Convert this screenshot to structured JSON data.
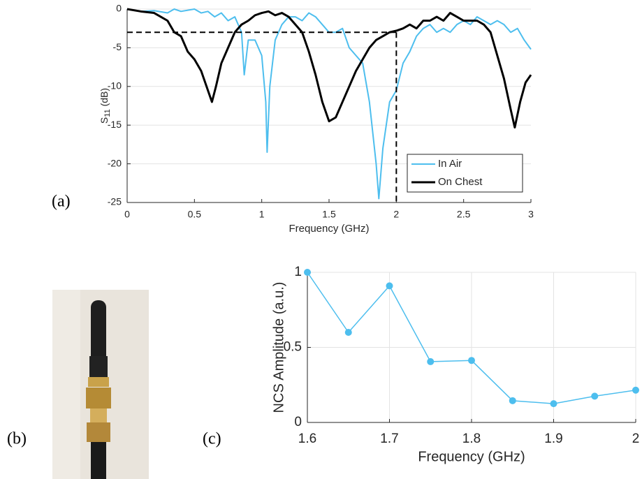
{
  "chart_data": [
    {
      "type": "line",
      "xlabel": "Frequency (GHz)",
      "ylabel": {
        "base": "S",
        "subscript": "11",
        "unit": " (dB)"
      },
      "panel": "(a)",
      "xlim": [
        0,
        3
      ],
      "xticks": [
        0,
        0.5,
        1,
        1.5,
        2,
        2.5,
        3
      ],
      "ylim": [
        -25,
        0
      ],
      "yticks": [
        -25,
        -20,
        -15,
        -10,
        -5,
        0
      ],
      "grid": "y",
      "legend": "lower-right",
      "reference_lines": {
        "y": -3,
        "x": 2,
        "color": "#000000"
      },
      "series": [
        {
          "name": "In Air",
          "color": "#4dbeee",
          "x": [
            0,
            0.1,
            0.2,
            0.3,
            0.35,
            0.4,
            0.5,
            0.55,
            0.6,
            0.65,
            0.7,
            0.75,
            0.8,
            0.85,
            0.87,
            0.9,
            0.95,
            1.0,
            1.03,
            1.04,
            1.06,
            1.1,
            1.15,
            1.2,
            1.25,
            1.3,
            1.35,
            1.4,
            1.45,
            1.5,
            1.55,
            1.6,
            1.65,
            1.7,
            1.75,
            1.8,
            1.85,
            1.87,
            1.9,
            1.95,
            2.0,
            2.05,
            2.1,
            2.15,
            2.2,
            2.25,
            2.3,
            2.35,
            2.4,
            2.45,
            2.5,
            2.55,
            2.6,
            2.65,
            2.7,
            2.75,
            2.8,
            2.85,
            2.9,
            2.95,
            3.0
          ],
          "values": [
            0,
            -0.3,
            -0.2,
            -0.5,
            0,
            -0.3,
            0,
            -0.5,
            -0.3,
            -1,
            -0.5,
            -1.5,
            -1,
            -3,
            -8.5,
            -4,
            -4,
            -6,
            -12,
            -18.5,
            -10,
            -4,
            -2,
            -1,
            -1,
            -1.5,
            -0.5,
            -1,
            -2,
            -3,
            -3,
            -2.5,
            -5,
            -6,
            -7,
            -12,
            -20,
            -24.5,
            -18,
            -12,
            -10.5,
            -7,
            -5.5,
            -3.5,
            -2.5,
            -2,
            -3,
            -2.5,
            -3,
            -2,
            -1.5,
            -2,
            -1,
            -1.5,
            -2,
            -1.5,
            -2,
            -3,
            -2.5,
            -4,
            -5.2
          ]
        },
        {
          "name": "On Chest",
          "color": "#000000",
          "x": [
            0,
            0.1,
            0.2,
            0.25,
            0.3,
            0.35,
            0.4,
            0.45,
            0.5,
            0.55,
            0.6,
            0.63,
            0.66,
            0.7,
            0.75,
            0.8,
            0.85,
            0.9,
            0.95,
            1.0,
            1.05,
            1.1,
            1.15,
            1.2,
            1.25,
            1.3,
            1.35,
            1.4,
            1.45,
            1.5,
            1.55,
            1.6,
            1.65,
            1.7,
            1.75,
            1.8,
            1.85,
            1.9,
            1.95,
            2.0,
            2.05,
            2.1,
            2.15,
            2.2,
            2.25,
            2.3,
            2.35,
            2.4,
            2.45,
            2.5,
            2.55,
            2.6,
            2.65,
            2.7,
            2.75,
            2.8,
            2.85,
            2.88,
            2.92,
            2.96,
            3.0
          ],
          "values": [
            0,
            -0.3,
            -0.5,
            -1,
            -1.5,
            -3,
            -3.5,
            -5.5,
            -6.5,
            -8,
            -10.5,
            -12,
            -10,
            -7,
            -5,
            -3,
            -2,
            -1.5,
            -0.8,
            -0.5,
            -0.3,
            -0.8,
            -0.5,
            -1,
            -2,
            -3,
            -5.5,
            -8.5,
            -12,
            -14.5,
            -14,
            -12,
            -10,
            -8,
            -6.5,
            -5,
            -4,
            -3.5,
            -3,
            -2.8,
            -2.5,
            -2,
            -2.5,
            -1.5,
            -1.5,
            -1,
            -1.5,
            -0.5,
            -1,
            -1.5,
            -1.5,
            -1.5,
            -2,
            -3,
            -6,
            -9,
            -13,
            -15.3,
            -12,
            -9.5,
            -8.5
          ]
        }
      ]
    },
    {
      "type": "line",
      "xlabel": "Frequency (GHz)",
      "ylabel": "NCS Amplitude (a.u.)",
      "panel": "(c)",
      "xlim": [
        1.6,
        2
      ],
      "xticks": [
        1.6,
        1.7,
        1.8,
        1.9,
        2
      ],
      "ylim": [
        0,
        1
      ],
      "yticks": [
        0,
        0.5,
        1
      ],
      "grid": "both",
      "markers": true,
      "series": [
        {
          "color": "#4dbeee",
          "x": [
            1.6,
            1.65,
            1.7,
            1.75,
            1.8,
            1.85,
            1.9,
            1.95,
            2
          ],
          "values": [
            1,
            0.6,
            0.91,
            0.405,
            0.413,
            0.145,
            0.125,
            0.175,
            0.215
          ]
        }
      ]
    }
  ],
  "photo": {
    "panel": "(b)"
  }
}
